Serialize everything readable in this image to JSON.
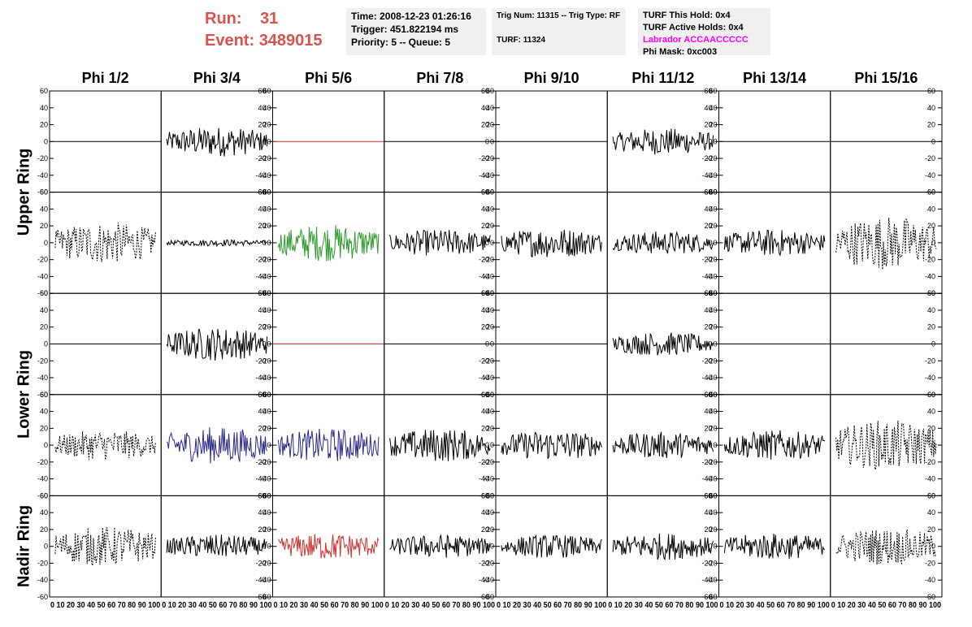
{
  "header": {
    "run_label": "Run:",
    "run_value": "31",
    "event_label": "Event:",
    "event_value": "3489015"
  },
  "info1": {
    "time": "Time: 2008-12-23 01:26:16",
    "trigger": "Trigger: 451.822194 ms",
    "priority": "Priority: 5 -- Queue: 5"
  },
  "info2": {
    "trig": "Trig Num: 11315 -- Trig Type: RF",
    "turf": "TURF: 11324"
  },
  "info3": {
    "hold": "TURF This Hold: 0x4",
    "active": "TURF Active Holds: 0x4",
    "labrador": "Labrador ACCAACCCCC",
    "mask": "Phi Mask: 0xc003",
    "labrador_color": "#ff00ff"
  },
  "columns": [
    "Phi 1/2",
    "Phi 3/4",
    "Phi 5/6",
    "Phi 7/8",
    "Phi 9/10",
    "Phi 11/12",
    "Phi 13/14",
    "Phi 15/16"
  ],
  "ring_labels": [
    "Upper Ring",
    "Lower Ring",
    "Nadir Ring"
  ],
  "chart_data": {
    "type": "line",
    "layout": "5 rows x 8 columns of waveform panels",
    "x_range": [
      0,
      100
    ],
    "y_range": [
      -60,
      60
    ],
    "y_ticks": [
      -60,
      -40,
      -20,
      0,
      20,
      40,
      60
    ],
    "x_ticks": [
      0,
      10,
      20,
      30,
      40,
      50,
      60,
      70,
      80,
      90,
      100
    ],
    "x_ticks_label": "0 10 20 30 40 50 60 70 80 90 100",
    "rows": [
      {
        "ring": "Upper Ring",
        "panels": [
          {
            "style": "flat",
            "color": "#000000",
            "amplitude": 0
          },
          {
            "style": "solid",
            "color": "#000000",
            "amplitude": 18
          },
          {
            "style": "flat",
            "color": "#cc3333",
            "amplitude": 0
          },
          {
            "style": "flat",
            "color": "#000000",
            "amplitude": 0
          },
          {
            "style": "flat",
            "color": "#000000",
            "amplitude": 0
          },
          {
            "style": "solid",
            "color": "#000000",
            "amplitude": 16
          },
          {
            "style": "flat",
            "color": "#000000",
            "amplitude": 0
          },
          {
            "style": "flat",
            "color": "#000000",
            "amplitude": 0
          }
        ]
      },
      {
        "ring": "Upper Ring",
        "panels": [
          {
            "style": "dashed",
            "color": "#000000",
            "amplitude": 25
          },
          {
            "style": "solid",
            "color": "#000000",
            "amplitude": 4
          },
          {
            "style": "solid",
            "color": "#2e9a2e",
            "amplitude": 22
          },
          {
            "style": "solid",
            "color": "#000000",
            "amplitude": 16
          },
          {
            "style": "solid",
            "color": "#000000",
            "amplitude": 18
          },
          {
            "style": "solid",
            "color": "#000000",
            "amplitude": 14
          },
          {
            "style": "solid",
            "color": "#000000",
            "amplitude": 16
          },
          {
            "style": "dashed",
            "color": "#000000",
            "amplitude": 32
          }
        ]
      },
      {
        "ring": "Lower Ring",
        "panels": [
          {
            "style": "flat",
            "color": "#000000",
            "amplitude": 0
          },
          {
            "style": "solid",
            "color": "#000000",
            "amplitude": 20
          },
          {
            "style": "flat",
            "color": "#cc3333",
            "amplitude": 0
          },
          {
            "style": "flat",
            "color": "#000000",
            "amplitude": 0
          },
          {
            "style": "flat",
            "color": "#000000",
            "amplitude": 0
          },
          {
            "style": "solid",
            "color": "#000000",
            "amplitude": 14
          },
          {
            "style": "flat",
            "color": "#000000",
            "amplitude": 0
          },
          {
            "style": "flat",
            "color": "#000000",
            "amplitude": 0
          }
        ]
      },
      {
        "ring": "Lower Ring",
        "panels": [
          {
            "style": "dashed",
            "color": "#000000",
            "amplitude": 18
          },
          {
            "style": "solid",
            "color": "#2a2a8a",
            "amplitude": 22
          },
          {
            "style": "solid",
            "color": "#2a2a8a",
            "amplitude": 20
          },
          {
            "style": "solid",
            "color": "#000000",
            "amplitude": 20
          },
          {
            "style": "solid",
            "color": "#000000",
            "amplitude": 18
          },
          {
            "style": "solid",
            "color": "#000000",
            "amplitude": 16
          },
          {
            "style": "solid",
            "color": "#000000",
            "amplitude": 18
          },
          {
            "style": "dashed",
            "color": "#000000",
            "amplitude": 30
          }
        ]
      },
      {
        "ring": "Nadir Ring",
        "panels": [
          {
            "style": "dashed",
            "color": "#000000",
            "amplitude": 24
          },
          {
            "style": "solid",
            "color": "#000000",
            "amplitude": 14
          },
          {
            "style": "solid",
            "color": "#cc3333",
            "amplitude": 16
          },
          {
            "style": "solid",
            "color": "#000000",
            "amplitude": 14
          },
          {
            "style": "solid",
            "color": "#000000",
            "amplitude": 14
          },
          {
            "style": "solid",
            "color": "#000000",
            "amplitude": 16
          },
          {
            "style": "solid",
            "color": "#000000",
            "amplitude": 16
          },
          {
            "style": "dashed",
            "color": "#000000",
            "amplitude": 22
          }
        ]
      }
    ]
  }
}
